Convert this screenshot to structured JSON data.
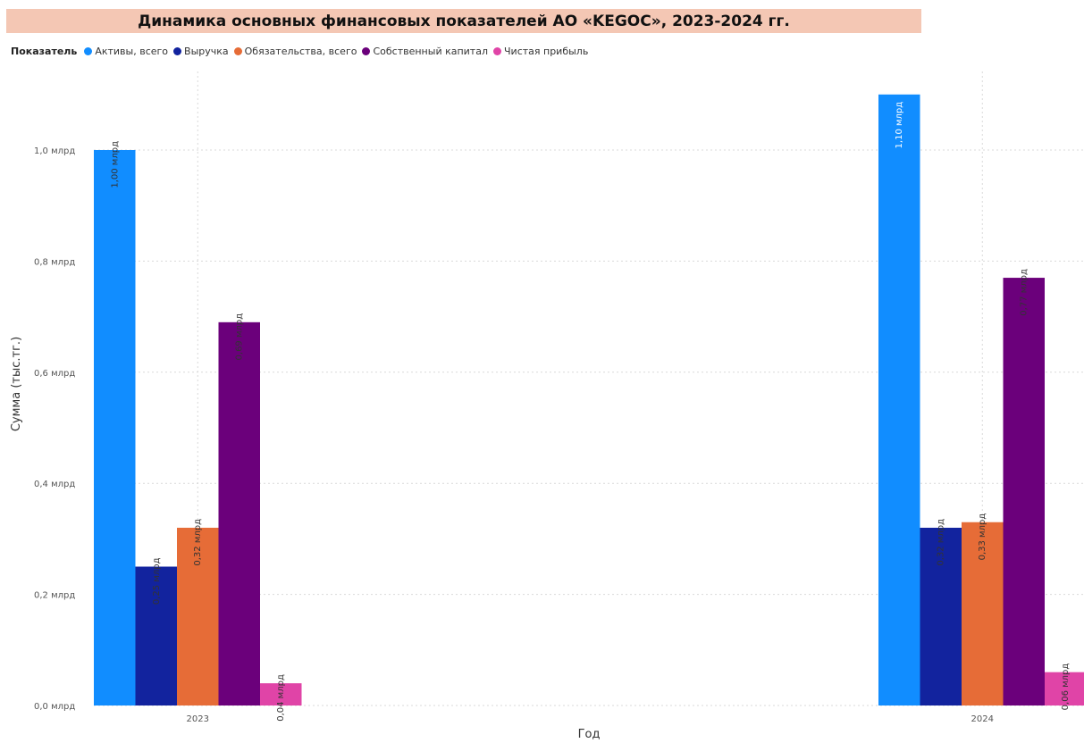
{
  "title": "Динамика основных финансовых показателей АО «KEGOC», 2023-2024 гг.",
  "legend_title": "Показатель",
  "chart_data": {
    "type": "bar",
    "title": "Динамика основных финансовых показателей АО «KEGOC», 2023-2024 гг.",
    "xlabel": "Год",
    "ylabel": "Сумма (тыс.тг.)",
    "categories": [
      "2023",
      "2024"
    ],
    "ylim": [
      0,
      1.1
    ],
    "yticks": [
      {
        "value": 0.0,
        "label": "0,0 млрд"
      },
      {
        "value": 0.2,
        "label": "0,2 млрд"
      },
      {
        "value": 0.4,
        "label": "0,4 млрд"
      },
      {
        "value": 0.6,
        "label": "0,6 млрд"
      },
      {
        "value": 0.8,
        "label": "0,8 млрд"
      },
      {
        "value": 1.0,
        "label": "1,0 млрд"
      }
    ],
    "grid": true,
    "legend_position": "top-left",
    "series": [
      {
        "name": "Активы, всего",
        "color": "#118dff",
        "values": [
          1.0,
          1.1
        ],
        "labels": [
          "1,00 млрд",
          "1,10 млрд"
        ]
      },
      {
        "name": "Выручка",
        "color": "#12239e",
        "values": [
          0.25,
          0.32
        ],
        "labels": [
          "0,25 млрд",
          "0,32 млрд"
        ]
      },
      {
        "name": "Обязательства, всего",
        "color": "#e66c37",
        "values": [
          0.32,
          0.33
        ],
        "labels": [
          "0,32 млрд",
          "0,33 млрд"
        ]
      },
      {
        "name": "Собственный капитал",
        "color": "#6b007b",
        "values": [
          0.69,
          0.77
        ],
        "labels": [
          "0,69 млрд",
          "0,77 млрд"
        ]
      },
      {
        "name": "Чистая прибыль",
        "color": "#e044a7",
        "values": [
          0.04,
          0.06
        ],
        "labels": [
          "0,04 млрд",
          "0,06 млрд"
        ]
      }
    ]
  }
}
